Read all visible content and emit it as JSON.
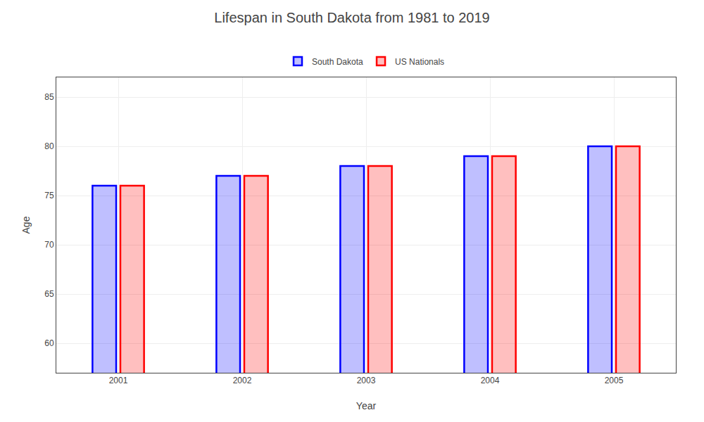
{
  "chart_data": {
    "type": "bar",
    "title": "Lifespan in South Dakota from 1981 to 2019",
    "xlabel": "Year",
    "ylabel": "Age",
    "categories": [
      "2001",
      "2002",
      "2003",
      "2004",
      "2005"
    ],
    "series": [
      {
        "name": "South Dakota",
        "color": "#0000ff",
        "values": [
          76,
          77,
          78,
          79,
          80
        ]
      },
      {
        "name": "US Nationals",
        "color": "#ff0000",
        "values": [
          76,
          77,
          78,
          79,
          80
        ]
      }
    ],
    "ylim": [
      57,
      87
    ],
    "yticks": [
      60,
      65,
      70,
      75,
      80,
      85
    ],
    "grid": true,
    "legend": "top"
  }
}
